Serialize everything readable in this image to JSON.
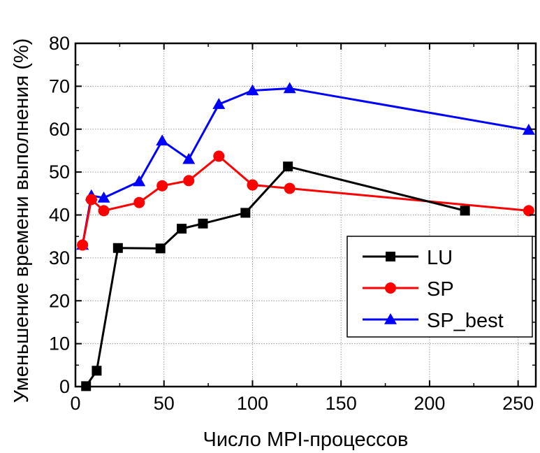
{
  "chart_data": {
    "type": "line",
    "xlabel": "Число MPI-процессов",
    "ylabel": "Уменьшение времени выполнения (%)",
    "xlim": [
      0,
      260
    ],
    "ylim": [
      0,
      80
    ],
    "xticks": [
      0,
      50,
      100,
      150,
      200,
      250
    ],
    "yticks": [
      0,
      10,
      20,
      30,
      40,
      50,
      60,
      70,
      80
    ],
    "xtick_labels": [
      "0",
      "50",
      "100",
      "150",
      "200",
      "250"
    ],
    "ytick_labels": [
      "0",
      "10",
      "20",
      "30",
      "40",
      "50",
      "60",
      "70",
      "80"
    ],
    "grid": true,
    "legend_position": "lower-right",
    "series": [
      {
        "name": "LU",
        "color": "#000000",
        "marker": "square",
        "x": [
          6,
          12,
          24,
          48,
          60,
          72,
          96,
          120,
          220
        ],
        "y": [
          0.1,
          3.7,
          32.3,
          32.2,
          36.8,
          38,
          40.5,
          51.3,
          41
        ]
      },
      {
        "name": "SP",
        "color": "#ff0000",
        "marker": "circle",
        "x": [
          4,
          9,
          16,
          36,
          49,
          64,
          81,
          100,
          121,
          256
        ],
        "y": [
          33,
          43.6,
          41,
          42.9,
          46.8,
          48,
          53.7,
          47,
          46.2,
          41
        ]
      },
      {
        "name": "SP_best",
        "color": "#0000ff",
        "marker": "triangle",
        "x": [
          4,
          9,
          16,
          36,
          49,
          64,
          81,
          100,
          121,
          256
        ],
        "y": [
          33,
          44.5,
          44,
          47.8,
          57.3,
          53,
          65.8,
          69,
          69.5,
          59.8
        ]
      }
    ]
  }
}
